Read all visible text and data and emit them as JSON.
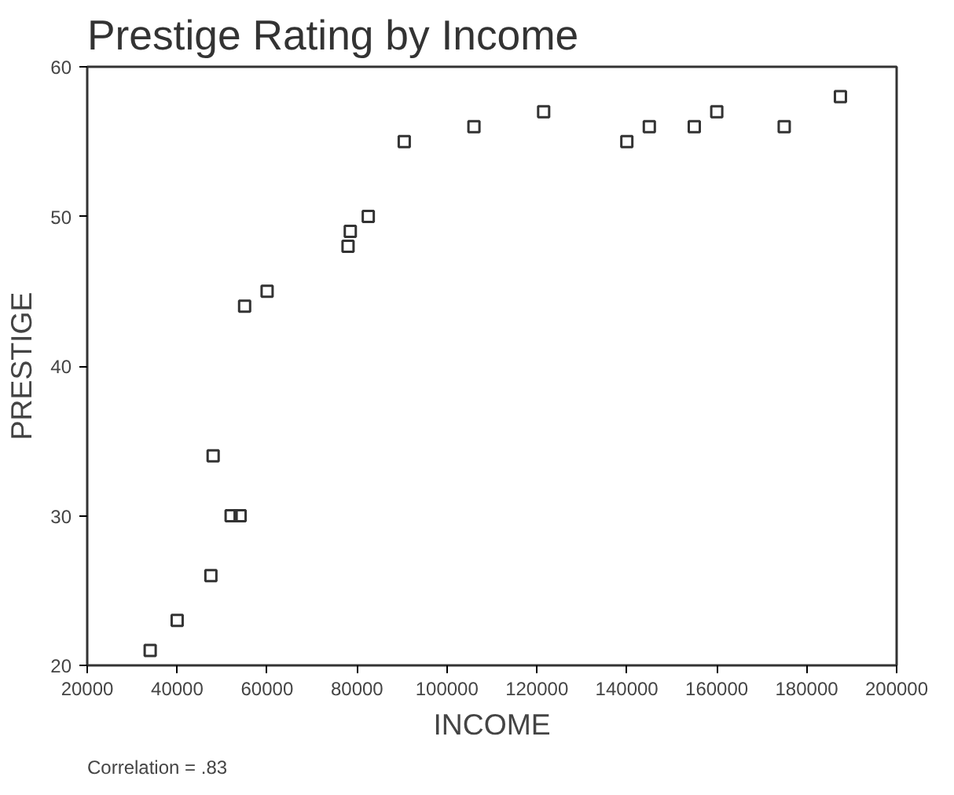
{
  "chart_data": {
    "type": "scatter",
    "title": "Prestige Rating by Income",
    "xlabel": "INCOME",
    "ylabel": "PRESTIGE",
    "annotations": [
      "Correlation  = .83"
    ],
    "x": [
      34000,
      40000,
      47500,
      48000,
      52000,
      54000,
      55000,
      60000,
      78000,
      78500,
      82500,
      90500,
      106000,
      121500,
      140000,
      145000,
      155000,
      160000,
      175000,
      187500
    ],
    "series": [
      {
        "color": "#333333",
        "values": [
          21,
          23,
          26,
          34,
          30,
          30,
          44,
          45,
          48,
          49,
          50,
          55,
          56,
          57,
          55,
          56,
          56,
          57,
          56,
          58
        ]
      }
    ],
    "marker": "square",
    "xlim": [
      20000,
      200000
    ],
    "ylim": [
      20,
      60
    ],
    "xticks": [
      20000,
      40000,
      60000,
      80000,
      100000,
      120000,
      140000,
      160000,
      180000,
      200000
    ],
    "yticks": [
      20,
      30,
      40,
      50,
      60
    ],
    "grid": false
  }
}
